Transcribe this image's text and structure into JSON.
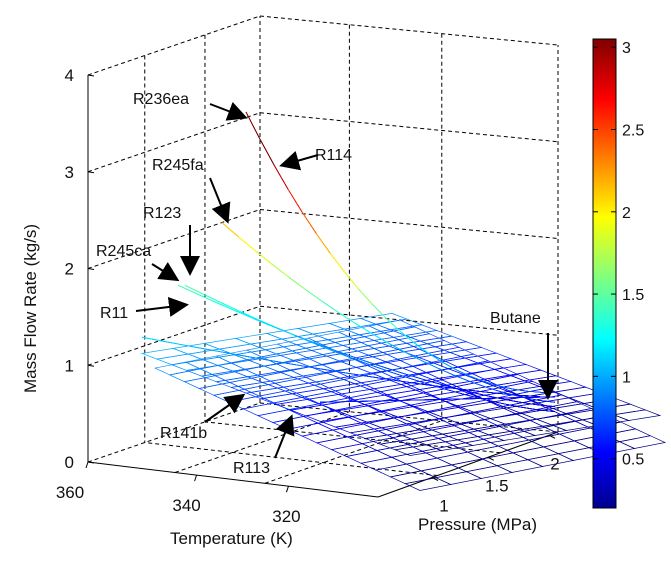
{
  "chart_data": {
    "type": "surface3d",
    "title": "",
    "zlabel": "Mass Flow Rate (kg/s)",
    "xlabel": "Temperature (K)",
    "ylabel": "Pressure (MPa)",
    "z_ticks": [
      "0",
      "1",
      "2",
      "3",
      "4"
    ],
    "x_ticks": [
      "360",
      "340",
      "320"
    ],
    "y_ticks": [
      "1",
      "1.5",
      "2"
    ],
    "zlim": [
      0,
      4
    ],
    "colorbar": {
      "colormap": "jet",
      "range": [
        0.2,
        3.05
      ],
      "ticks": [
        "0.5",
        "1",
        "1.5",
        "2",
        "2.5",
        "3"
      ]
    },
    "grid": true,
    "series": [
      {
        "name": "R236ea",
        "peak_mass_flow": 3.7
      },
      {
        "name": "R114",
        "peak_mass_flow": 3.7
      },
      {
        "name": "R245fa",
        "peak_mass_flow": 2.3
      },
      {
        "name": "R123",
        "peak_mass_flow": 1.6
      },
      {
        "name": "R245ca",
        "peak_mass_flow": 1.6
      },
      {
        "name": "R11",
        "peak_mass_flow": 1.3
      },
      {
        "name": "R141b",
        "peak_mass_flow": 1.1
      },
      {
        "name": "R113",
        "peak_mass_flow": 1.0
      },
      {
        "name": "Butane",
        "peak_mass_flow": 0.6
      }
    ]
  }
}
